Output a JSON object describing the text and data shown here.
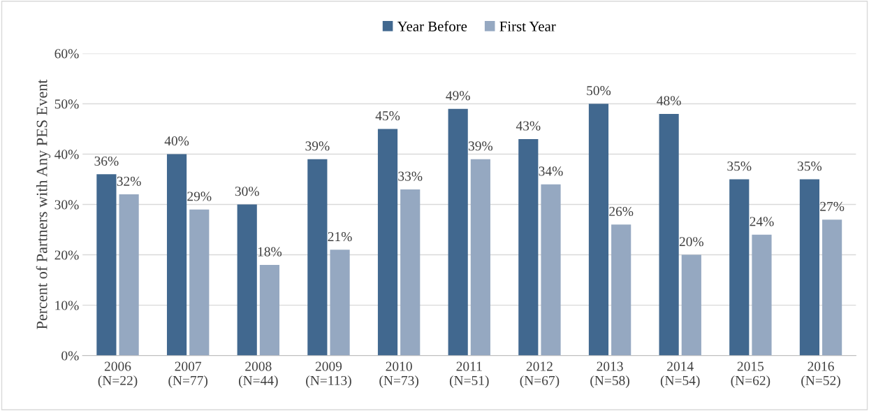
{
  "chart_data": {
    "type": "bar",
    "ylabel": "Percent of Partners with Any PES Event",
    "categories": [
      "2006\n(N=22)",
      "2007\n(N=77)",
      "2008\n(N=44)",
      "2009\n(N=113)",
      "2010\n(N=73)",
      "2011\n(N=51)",
      "2012\n(N=67)",
      "2013\n(N=58)",
      "2014\n(N=54)",
      "2015\n(N=62)",
      "2016\n(N=52)"
    ],
    "series": [
      {
        "name": "Year Before",
        "color": "#41688f",
        "values": [
          36,
          40,
          30,
          39,
          45,
          49,
          43,
          50,
          48,
          35,
          35
        ],
        "value_labels": [
          "36%",
          "40%",
          "30%",
          "39%",
          "45%",
          "49%",
          "43%",
          "50%",
          "48%",
          "35%",
          "35%"
        ]
      },
      {
        "name": "First Year",
        "color": "#95a8c1",
        "values": [
          32,
          29,
          18,
          21,
          33,
          39,
          34,
          26,
          20,
          24,
          27
        ],
        "value_labels": [
          "32%",
          "29%",
          "18%",
          "21%",
          "33%",
          "39%",
          "34%",
          "26%",
          "20%",
          "24%",
          "27%"
        ]
      }
    ],
    "ylim": [
      0,
      60
    ],
    "yticks": [
      {
        "value": 0,
        "label": "0%"
      },
      {
        "value": 10,
        "label": "10%"
      },
      {
        "value": 20,
        "label": "20%"
      },
      {
        "value": 30,
        "label": "30%"
      },
      {
        "value": 40,
        "label": "40%"
      },
      {
        "value": 50,
        "label": "50%"
      },
      {
        "value": 60,
        "label": "60%"
      }
    ],
    "grid": "y",
    "legend": "top"
  }
}
